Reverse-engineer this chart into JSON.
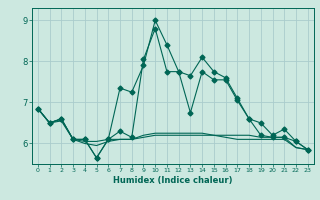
{
  "title": "",
  "xlabel": "Humidex (Indice chaleur)",
  "xlim": [
    -0.5,
    23.5
  ],
  "ylim": [
    5.5,
    9.3
  ],
  "yticks": [
    6,
    7,
    8,
    9
  ],
  "xticks": [
    0,
    1,
    2,
    3,
    4,
    5,
    6,
    7,
    8,
    9,
    10,
    11,
    12,
    13,
    14,
    15,
    16,
    17,
    18,
    19,
    20,
    21,
    22,
    23
  ],
  "bg_color": "#cce8e0",
  "grid_color": "#aacccc",
  "line_color": "#006655",
  "series": [
    {
      "x": [
        0,
        1,
        2,
        3,
        4,
        5,
        6,
        7,
        8,
        9,
        10,
        11,
        12,
        13,
        14,
        15,
        16,
        17,
        18,
        19,
        20,
        21,
        22,
        23
      ],
      "y": [
        6.85,
        6.5,
        6.6,
        6.1,
        6.1,
        5.65,
        6.1,
        6.3,
        6.15,
        8.05,
        8.8,
        7.75,
        7.75,
        6.75,
        7.75,
        7.55,
        7.55,
        7.05,
        6.6,
        6.2,
        6.15,
        6.15,
        6.05,
        5.85
      ],
      "marker": "D",
      "markersize": 2.5
    },
    {
      "x": [
        0,
        1,
        2,
        3,
        4,
        5,
        6,
        7,
        8,
        9,
        10,
        11,
        12,
        13,
        14,
        15,
        16,
        17,
        18,
        19,
        20,
        21,
        22,
        23
      ],
      "y": [
        6.85,
        6.5,
        6.6,
        6.1,
        6.1,
        5.65,
        6.1,
        7.35,
        7.25,
        7.9,
        9.0,
        8.4,
        7.75,
        7.65,
        8.1,
        7.75,
        7.6,
        7.1,
        6.6,
        6.5,
        6.2,
        6.35,
        6.05,
        5.85
      ],
      "marker": "D",
      "markersize": 2.5
    },
    {
      "x": [
        0,
        1,
        2,
        3,
        4,
        5,
        6,
        7,
        8,
        9,
        10,
        11,
        12,
        13,
        14,
        15,
        16,
        17,
        18,
        19,
        20,
        21,
        22,
        23
      ],
      "y": [
        6.85,
        6.5,
        6.6,
        6.1,
        6.05,
        6.05,
        6.1,
        6.1,
        6.1,
        6.2,
        6.25,
        6.25,
        6.25,
        6.25,
        6.25,
        6.2,
        6.2,
        6.2,
        6.2,
        6.15,
        6.15,
        6.15,
        5.9,
        5.85
      ],
      "marker": null,
      "markersize": 0
    },
    {
      "x": [
        0,
        1,
        2,
        3,
        4,
        5,
        6,
        7,
        8,
        9,
        10,
        11,
        12,
        13,
        14,
        15,
        16,
        17,
        18,
        19,
        20,
        21,
        22,
        23
      ],
      "y": [
        6.85,
        6.5,
        6.55,
        6.1,
        6.0,
        5.95,
        6.05,
        6.1,
        6.1,
        6.15,
        6.2,
        6.2,
        6.2,
        6.2,
        6.2,
        6.2,
        6.15,
        6.1,
        6.1,
        6.1,
        6.1,
        6.1,
        5.9,
        5.85
      ],
      "marker": null,
      "markersize": 0
    }
  ]
}
